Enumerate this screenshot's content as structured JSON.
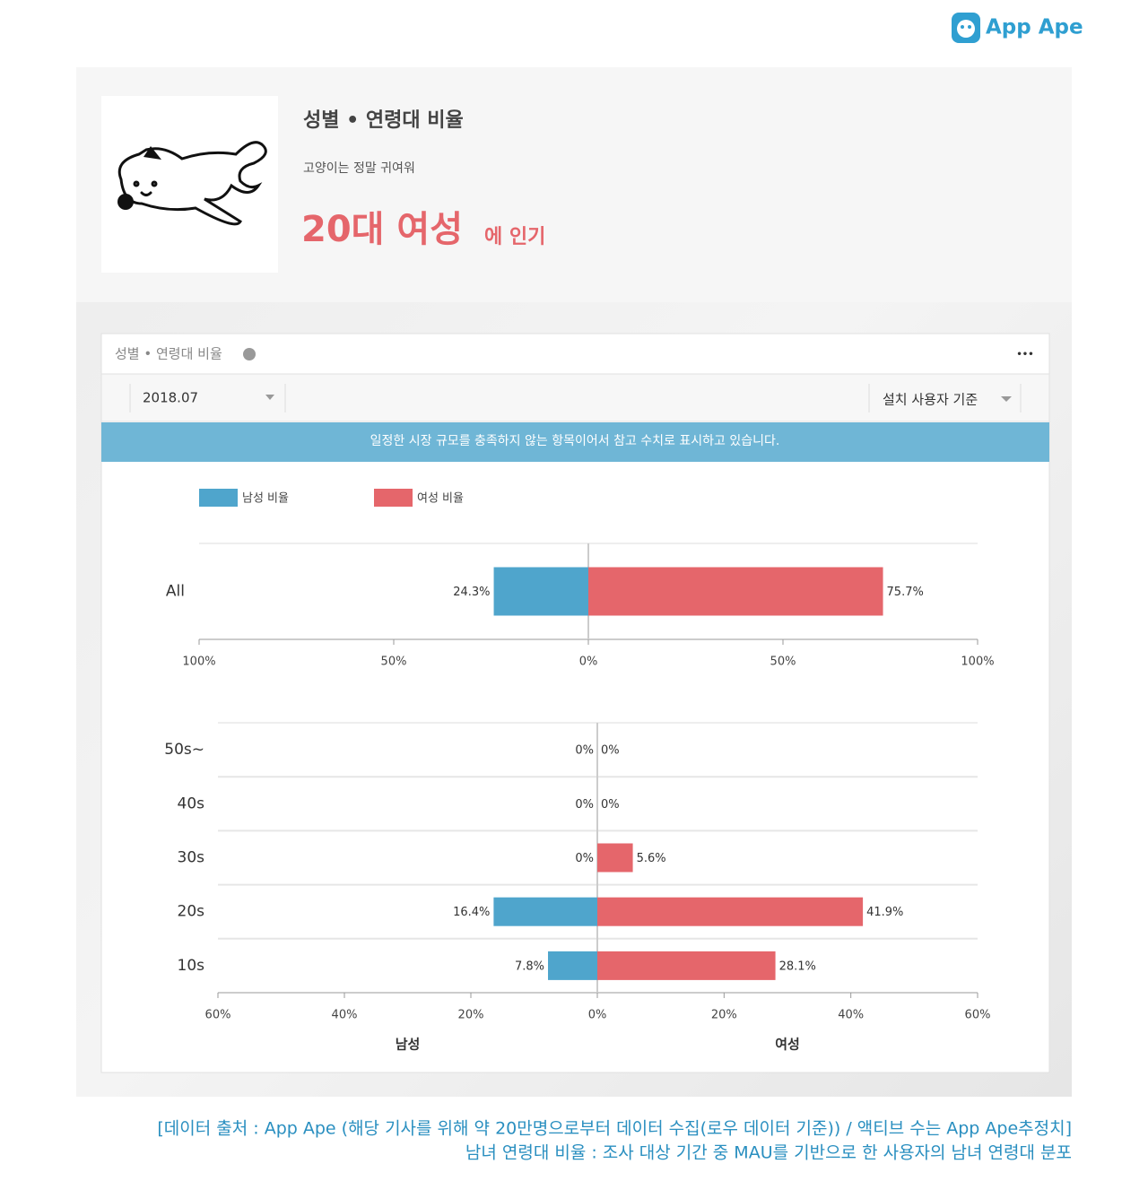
{
  "logo": "App Ape",
  "header": {
    "title": "성별 • 연령대 비율",
    "subtitle": "고양이는 정말 귀여워",
    "highlight": "20대 여성",
    "highlight_suffix": "에 인기"
  },
  "panel": {
    "title": "성별 • 연령대 비율",
    "menu": "•••",
    "date": "2018.07",
    "basis": "설치 사용자 기준",
    "notice": "일정한 시장 규모를 충족하지 않는 항목이어서 참고 수치로 표시하고 있습니다."
  },
  "chart_data": [
    {
      "type": "butterfly",
      "categories": [
        "All"
      ],
      "series": [
        {
          "name": "남성 비율",
          "color": "#4fa5cc",
          "values": [
            24.3
          ],
          "value_labels": [
            "24.3%"
          ]
        },
        {
          "name": "여성 비율",
          "color": "#e5666b",
          "values": [
            75.7
          ],
          "value_labels": [
            "75.7%"
          ]
        }
      ],
      "xlim": [
        0,
        100
      ],
      "xticks": [
        {
          "value": 0,
          "label": "0%"
        },
        {
          "value": 50,
          "label": "50%"
        },
        {
          "value": 100,
          "label": "100%"
        }
      ]
    },
    {
      "type": "butterfly",
      "categories": [
        "50s~",
        "40s",
        "30s",
        "20s",
        "10s"
      ],
      "series": [
        {
          "color": "#4fa5cc",
          "values": [
            0,
            0,
            0,
            16.4,
            7.8
          ],
          "value_labels": [
            "0%",
            "0%",
            "0%",
            "16.4%",
            "7.8%"
          ]
        },
        {
          "color": "#e5666b",
          "values": [
            0,
            0,
            5.6,
            41.9,
            28.1
          ],
          "value_labels": [
            "0%",
            "0%",
            "5.6%",
            "41.9%",
            "28.1%"
          ]
        }
      ],
      "xlim": [
        0,
        60
      ],
      "xticks": [
        {
          "value": 0,
          "label": "0%"
        },
        {
          "value": 20,
          "label": "20%"
        },
        {
          "value": 40,
          "label": "40%"
        },
        {
          "value": 60,
          "label": "60%"
        }
      ],
      "x_label_left": "남성",
      "x_label_right": "여성"
    }
  ],
  "footer": {
    "line1": "[데이터 출처 : App Ape (해당 기사를 위해 약 20만명으로부터 데이터 수집(로우 데이터 기준)) / 액티브 수는 App Ape추정치]",
    "line2": "남녀 연령대 비율 : 조사 대상 기간 중 MAU를 기반으로 한 사용자의 남녀 연령대 분포"
  }
}
